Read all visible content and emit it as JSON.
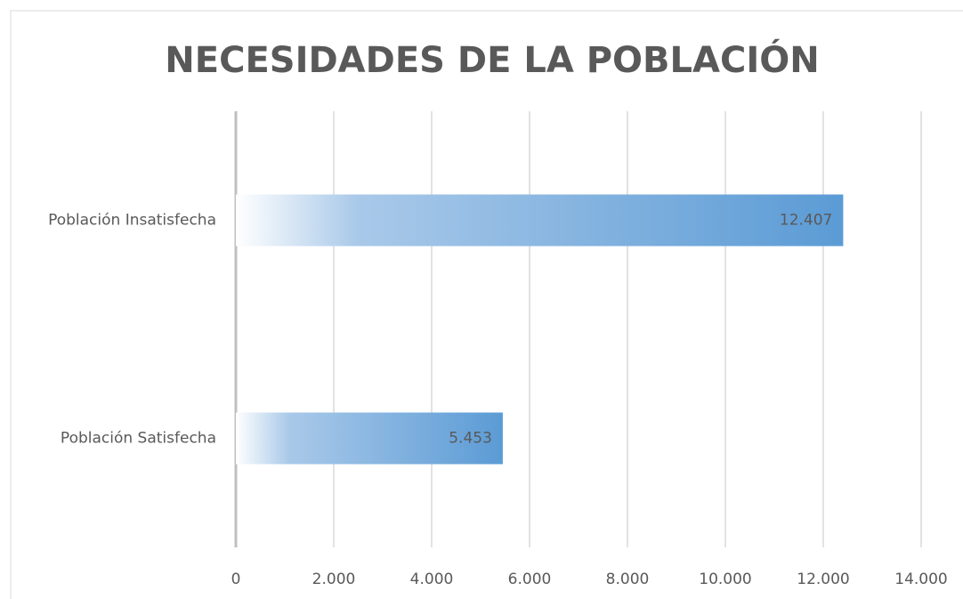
{
  "chart_data": {
    "type": "hbar",
    "title": "NECESIDADES DE LA POBLACIÓN",
    "categories": [
      "Población Insatisfecha",
      "Población Satisfecha"
    ],
    "values": [
      12407,
      5453
    ],
    "value_labels": [
      "12.407",
      "5.453"
    ],
    "color": "#5b9bd5",
    "xlim": [
      0,
      14000
    ],
    "xticks": [
      0,
      {
        "value": 2000,
        "label": "2.000"
      },
      {
        "value": 4000,
        "label": "4.000"
      },
      {
        "value": 6000,
        "label": "6.000"
      },
      {
        "value": 8000,
        "label": "8.000"
      },
      {
        "value": 10000,
        "label": "10.000"
      },
      {
        "value": 12000,
        "label": "12.000"
      },
      {
        "value": 14000,
        "label": "14.000"
      }
    ],
    "grid": true
  }
}
